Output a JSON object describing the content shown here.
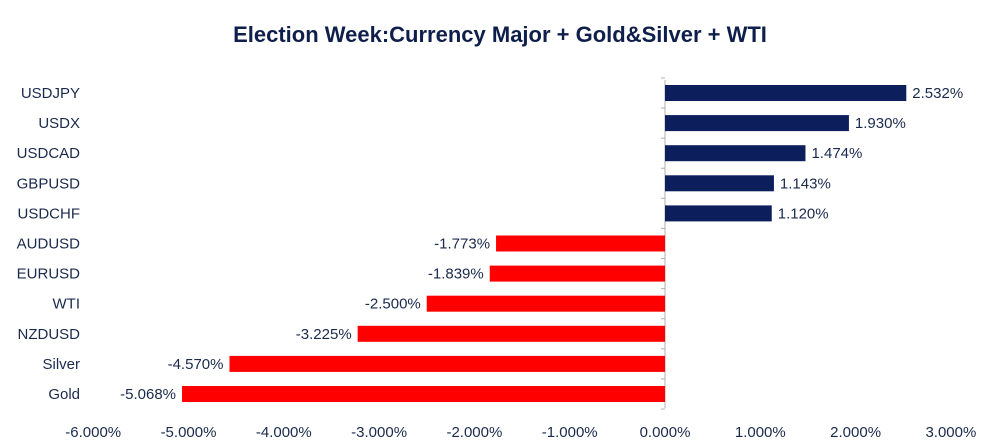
{
  "chart_data": {
    "type": "bar",
    "orientation": "horizontal",
    "title": "Election Week:Currency Major + Gold&Silver + WTI",
    "categories": [
      "USDJPY",
      "USDX",
      "USDCAD",
      "GBPUSD",
      "USDCHF",
      "AUDUSD",
      "EURUSD",
      "WTI",
      "NZDUSD",
      "Silver",
      "Gold"
    ],
    "values": [
      2.532,
      1.93,
      1.474,
      1.143,
      1.12,
      -1.773,
      -1.839,
      -2.5,
      -3.225,
      -4.57,
      -5.068
    ],
    "value_labels": [
      "2.532%",
      "1.930%",
      "1.474%",
      "1.143%",
      "1.120%",
      "-1.773%",
      "-1.839%",
      "-2.500%",
      "-3.225%",
      "-4.570%",
      "-5.068%"
    ],
    "xlim": [
      -6,
      3
    ],
    "x_ticks": [
      -6,
      -5,
      -4,
      -3,
      -2,
      -1,
      0,
      1,
      2,
      3
    ],
    "x_tick_labels": [
      "-6.000%",
      "-5.000%",
      "-4.000%",
      "-3.000%",
      "-2.000%",
      "-1.000%",
      "0.000%",
      "1.000%",
      "2.000%",
      "3.000%"
    ],
    "colors": {
      "positive": "#0c1f5c",
      "negative": "#ff0000",
      "axis": "#b0b0b0"
    },
    "grid": false,
    "legend": "none"
  }
}
